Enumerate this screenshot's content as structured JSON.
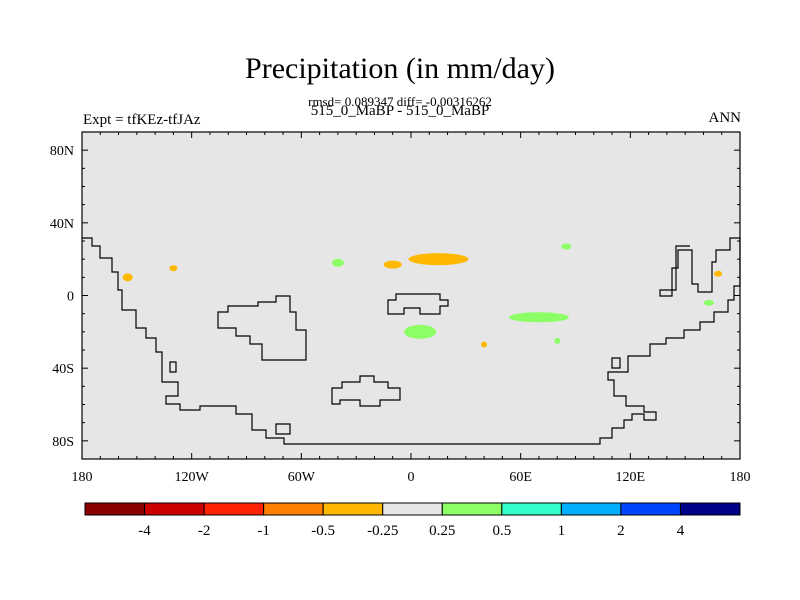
{
  "header": {
    "title": "Precipitation (in mm/day)",
    "stats": "rmsd= 0.089347 diff= -0.00316262",
    "subtitle": "515_0_MaBP - 515_0_MaBP",
    "expt": "Expt = tfKEz-tfJAz",
    "season": "ANN"
  },
  "chart_data": {
    "type": "heatmap",
    "title": "Precipitation (in mm/day)",
    "projection": "cylindrical equidistant",
    "xlim": [
      -180,
      180
    ],
    "ylim": [
      -90,
      90
    ],
    "x_ticks": [
      {
        "value": -180,
        "label": "180"
      },
      {
        "value": -120,
        "label": "120W"
      },
      {
        "value": -60,
        "label": "60W"
      },
      {
        "value": 0,
        "label": "0"
      },
      {
        "value": 60,
        "label": "60E"
      },
      {
        "value": 120,
        "label": "120E"
      },
      {
        "value": 180,
        "label": "180"
      }
    ],
    "y_ticks": [
      {
        "value": 80,
        "label": "80N"
      },
      {
        "value": 40,
        "label": "40N"
      },
      {
        "value": 0,
        "label": "0"
      },
      {
        "value": -40,
        "label": "40S"
      },
      {
        "value": -80,
        "label": "80S"
      }
    ],
    "background_color": "#e6e6e6",
    "colorbar": {
      "levels": [
        "-4",
        "-2",
        "-1",
        "-0.5",
        "-0.25",
        "0.25",
        "0.5",
        "1",
        "2",
        "4"
      ],
      "colors": [
        "#8b0000",
        "#cc0000",
        "#ff2200",
        "#ff7f00",
        "#ffb800",
        "#e6e6e6",
        "#8cff66",
        "#33ffcc",
        "#00b0ff",
        "#0044ff",
        "#000088"
      ]
    },
    "anomaly_patches": [
      {
        "lon": -155,
        "lat": 10,
        "sign": "negative",
        "color": "#ffb800"
      },
      {
        "lon": -130,
        "lat": 15,
        "sign": "negative",
        "color": "#ffb800"
      },
      {
        "lon": -10,
        "lat": 17,
        "sign": "negative",
        "color": "#ffb800"
      },
      {
        "lon": 15,
        "lat": 20,
        "sign": "negative",
        "color": "#ffb800"
      },
      {
        "lon": 168,
        "lat": 12,
        "sign": "negative",
        "color": "#ffb800"
      },
      {
        "lon": 40,
        "lat": -27,
        "sign": "negative",
        "color": "#ffb800"
      },
      {
        "lon": -40,
        "lat": 18,
        "sign": "positive",
        "color": "#8cff66"
      },
      {
        "lon": 85,
        "lat": 27,
        "sign": "positive",
        "color": "#8cff66"
      },
      {
        "lon": 5,
        "lat": -20,
        "sign": "positive",
        "color": "#8cff66"
      },
      {
        "lon": 70,
        "lat": -12,
        "sign": "positive",
        "color": "#8cff66"
      },
      {
        "lon": 80,
        "lat": -25,
        "sign": "positive",
        "color": "#8cff66"
      },
      {
        "lon": 163,
        "lat": -4,
        "sign": "positive",
        "color": "#8cff66"
      }
    ]
  }
}
